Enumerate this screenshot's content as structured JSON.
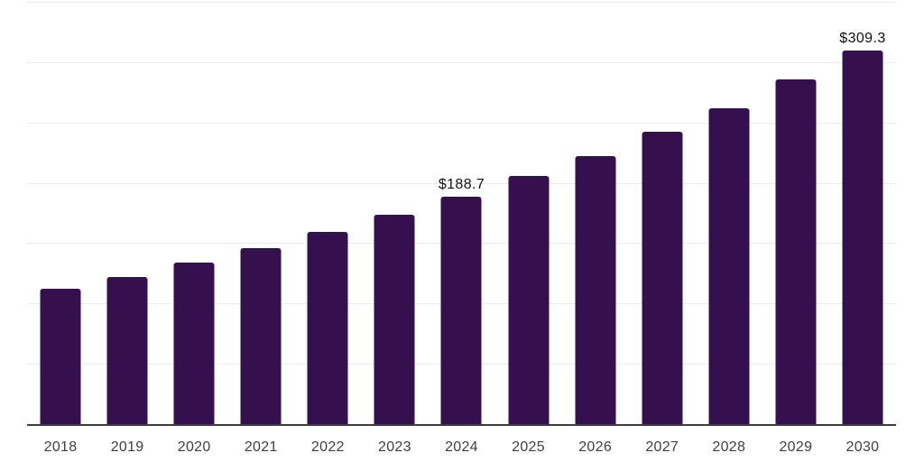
{
  "chart_data": {
    "type": "bar",
    "title": "",
    "xlabel": "",
    "ylabel": "",
    "categories": [
      "2018",
      "2019",
      "2020",
      "2021",
      "2022",
      "2023",
      "2024",
      "2025",
      "2026",
      "2027",
      "2028",
      "2029",
      "2030"
    ],
    "values": [
      112.4,
      122.0,
      133.7,
      145.6,
      159.3,
      173.8,
      188.7,
      205.4,
      222.3,
      242.2,
      262.1,
      285.5,
      309.3
    ],
    "data_labels": [
      "",
      "",
      "",
      "",
      "",
      "",
      "$188.7",
      "",
      "",
      "",
      "",
      "",
      "$309.3"
    ],
    "ylim": [
      0,
      350
    ],
    "gridline_step": 50,
    "grid": true,
    "legend": false,
    "colors": {
      "bar": "#35104E",
      "axis_line": "#3c3c3c",
      "gridline": "#ebebee",
      "data_label": "#111111",
      "tick_label": "#3f3f3f",
      "background": "#ffffff"
    }
  }
}
